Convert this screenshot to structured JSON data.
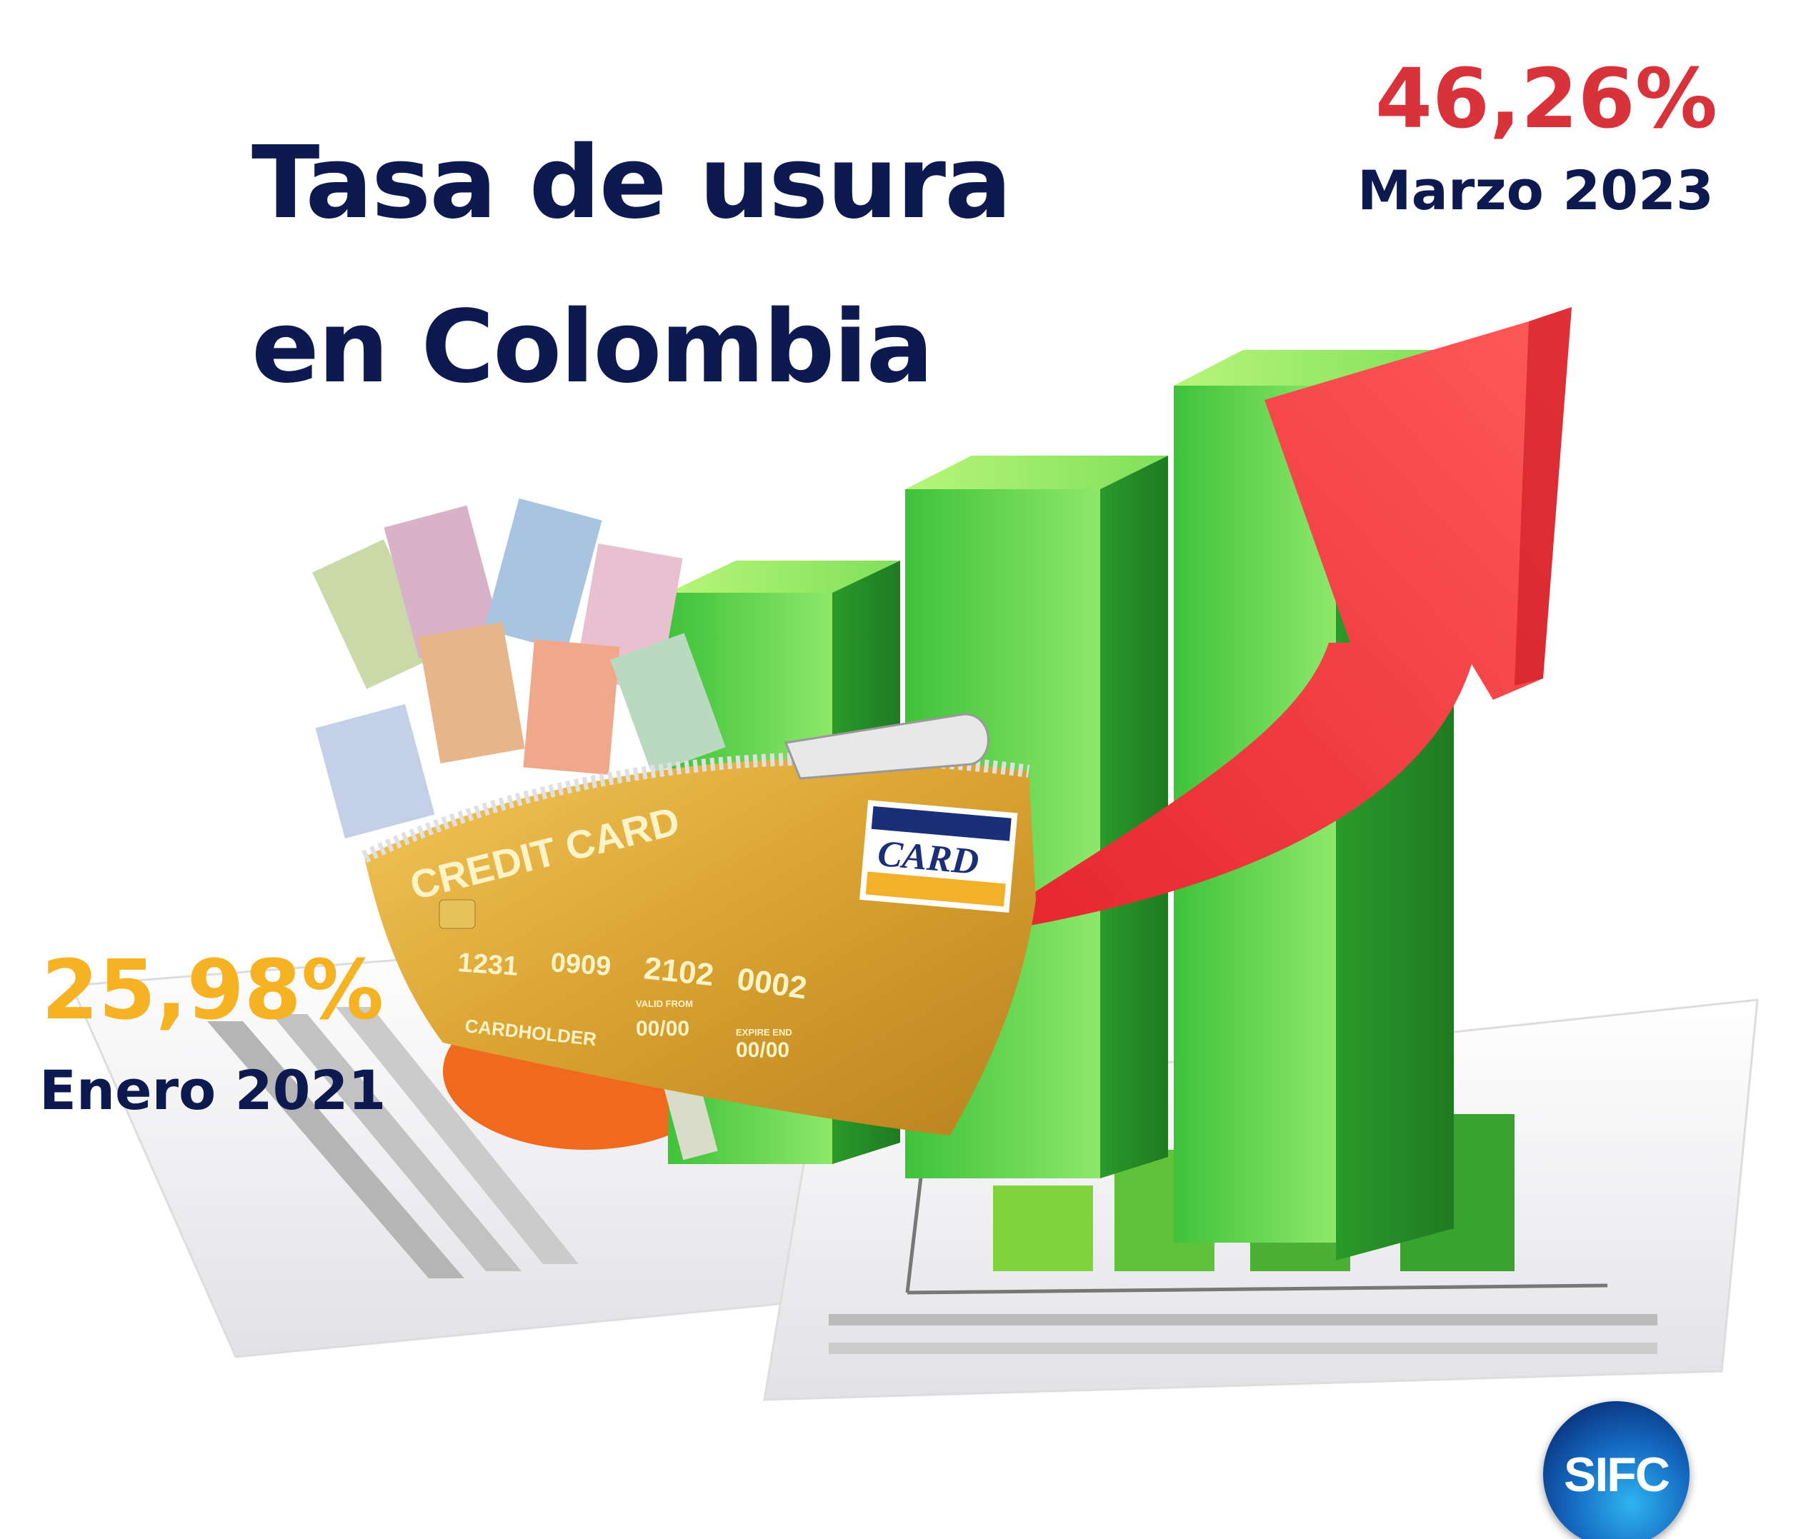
{
  "title": {
    "line1": "Tasa de usura",
    "line2": "en Colombia"
  },
  "highlight_high": {
    "value": "46,26%",
    "date": "Marzo 2023",
    "color": "#d8323a"
  },
  "highlight_low": {
    "value": "25,98%",
    "date": "Enero 2021",
    "color": "#f5b223"
  },
  "title_color": "#0d1a4f",
  "illustration": {
    "card": {
      "label": "CREDIT CARD",
      "number": [
        "1231",
        "0909",
        "2102",
        "0002"
      ],
      "holder": "CARDHOLDER",
      "valid_from_label": "VALID FROM",
      "valid_from": "00/00",
      "expire_label": "EXPIRE END",
      "expire": "00/00",
      "brand": "CARD"
    }
  },
  "logo": {
    "text": "SIFC"
  }
}
